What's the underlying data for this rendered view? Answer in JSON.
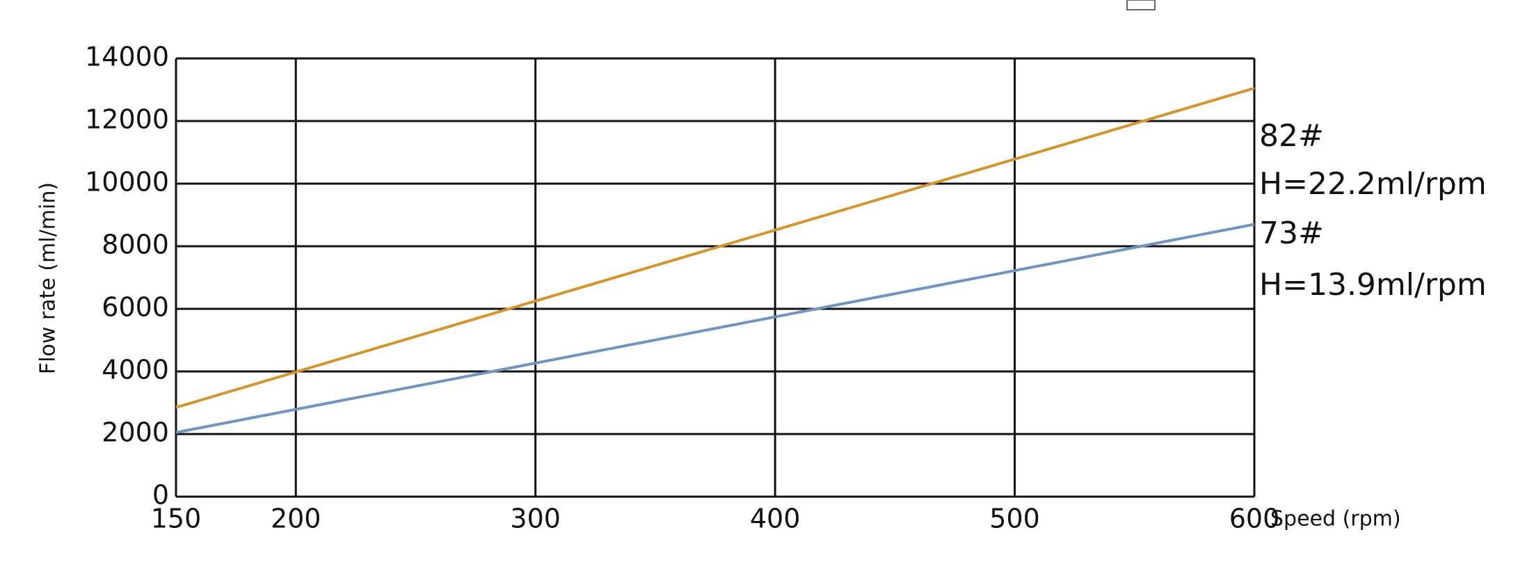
{
  "chart_data": {
    "type": "line",
    "x_label": "Speed (rpm)",
    "y_label": "Flow rate (ml/min)",
    "x": [
      150,
      600
    ],
    "series": [
      {
        "name": "82#",
        "color": "#d4952e",
        "values": [
          2850,
          13050
        ],
        "note": "H=22.2ml/rpm"
      },
      {
        "name": "73#",
        "color": "#7193bf",
        "values": [
          2050,
          8700
        ],
        "note": "H=13.9ml/rpm"
      }
    ],
    "xlim": [
      150,
      600
    ],
    "xticks": [
      150,
      200,
      300,
      400,
      500,
      600
    ],
    "ylim": [
      0,
      14000
    ],
    "yticks": [
      0,
      2000,
      4000,
      6000,
      8000,
      10000,
      12000,
      14000
    ],
    "grid": true
  }
}
